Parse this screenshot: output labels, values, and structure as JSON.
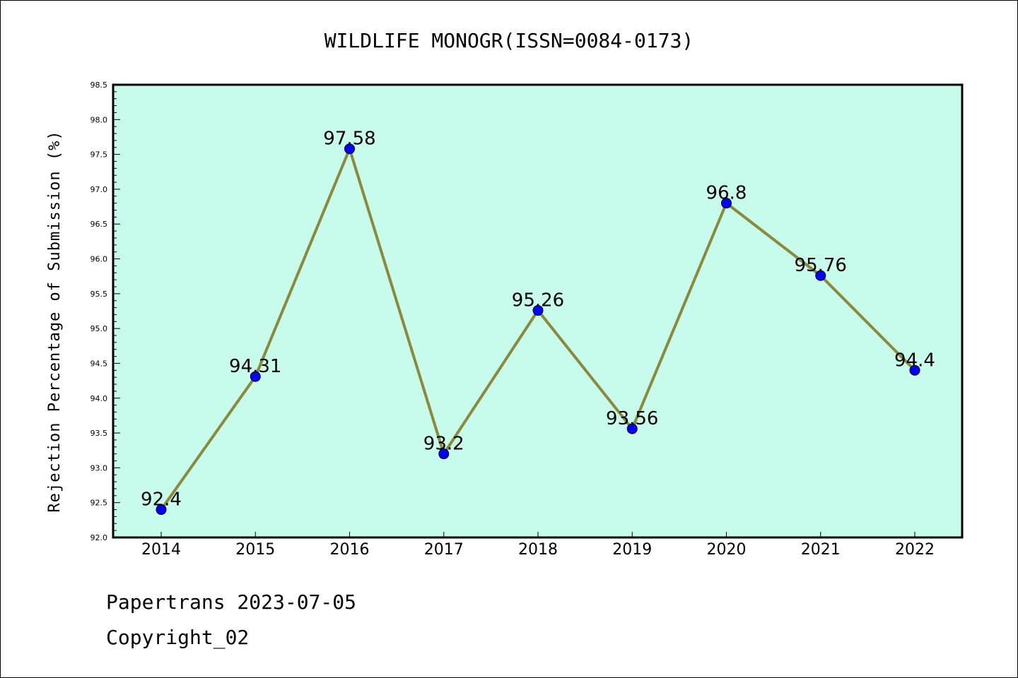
{
  "chart_data": {
    "type": "line",
    "title": "WILDLIFE MONOGR(ISSN=0084-0173)",
    "ylabel": "Rejection Percentage of Submission (%)",
    "xlabel": "",
    "categories": [
      "2014",
      "2015",
      "2016",
      "2017",
      "2018",
      "2019",
      "2020",
      "2021",
      "2022"
    ],
    "values": [
      92.4,
      94.31,
      97.58,
      93.2,
      95.26,
      93.56,
      96.8,
      95.76,
      94.4
    ],
    "data_labels": [
      "92.4",
      "94.31",
      "97.58",
      "93.2",
      "95.26",
      "93.56",
      "96.8",
      "95.76",
      "94.4"
    ],
    "ylim": [
      92.0,
      98.5
    ],
    "yticks": [
      "92.0",
      "92.5",
      "93.0",
      "93.5",
      "94.0",
      "94.5",
      "95.0",
      "95.5",
      "96.0",
      "96.5",
      "97.0",
      "97.5",
      "98.0",
      "98.5"
    ],
    "grid": false,
    "colors": {
      "plot_background": "#c7fcec",
      "line": "#8b8a3a",
      "marker": "#0000ff"
    }
  },
  "footer": {
    "line1": "Papertrans 2023-07-05",
    "line2": "Copyright_02"
  }
}
